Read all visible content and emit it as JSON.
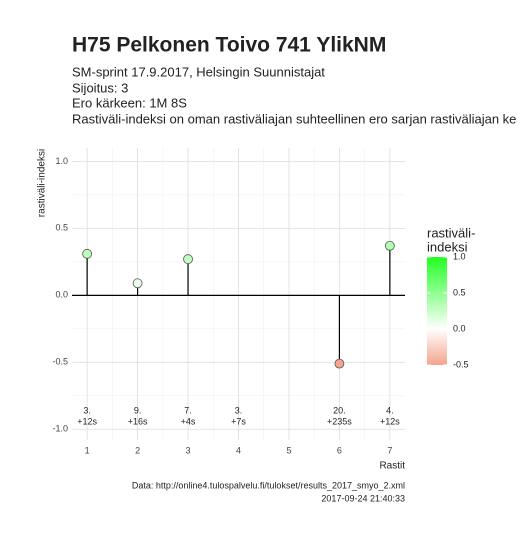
{
  "chart_data": {
    "type": "lollipop",
    "title": "H75 Pelkonen Toivo 741 YlikNM",
    "subtitle": [
      "SM-sprint 17.9.2017, Helsingin Suunnistajat",
      "Sijoitus: 3",
      "Ero kärkeen: 1M 8S",
      "Rastiväli-indeksi on oman rastiväliajan suhteellinen ero sarjan rastiväliajan kes"
    ],
    "y_label": "rastiväli-indeksi",
    "x_label": "Rastit",
    "caption": [
      "Data: http://online4.tulospalvelu.fi/tulokset/results_2017_smyo_2.xml",
      "2017-09-24 21:40:33"
    ],
    "x": [
      1,
      2,
      3,
      4,
      5,
      6,
      7
    ],
    "values": [
      0.31,
      0.09,
      0.27,
      null,
      null,
      -0.51,
      0.37
    ],
    "bottom_labels": [
      [
        "3.",
        "+12s"
      ],
      [
        "9.",
        "+16s"
      ],
      [
        "7.",
        "+4s"
      ],
      [
        "3.",
        "+7s"
      ],
      null,
      [
        "20.",
        "+235s"
      ],
      [
        "4.",
        "+12s"
      ]
    ],
    "xlim": [
      0.7,
      7.3
    ],
    "xticks": [
      1,
      2,
      3,
      4,
      5,
      6,
      7
    ],
    "ylim": [
      -1.08,
      1.1
    ],
    "yticks": [
      {
        "value": -1,
        "label": "-1.0"
      },
      {
        "value": -0.5,
        "label": "-0.5"
      },
      {
        "value": 0,
        "label": "0.0"
      },
      {
        "value": 0.5,
        "label": "0.5"
      },
      {
        "value": 1,
        "label": "1.0"
      }
    ],
    "grid": true,
    "legend": {
      "title": [
        "rastiväli-",
        "indeksi"
      ],
      "ticks": [
        {
          "value": -0.5,
          "label": "-0.5"
        },
        {
          "value": 0,
          "label": "0.0"
        },
        {
          "value": 0.5,
          "label": "0.5"
        },
        {
          "value": 1,
          "label": "1.0"
        }
      ],
      "low_color": "#f4a38c",
      "mid_color": "#ffffff",
      "high_color": "#22ff22"
    }
  }
}
